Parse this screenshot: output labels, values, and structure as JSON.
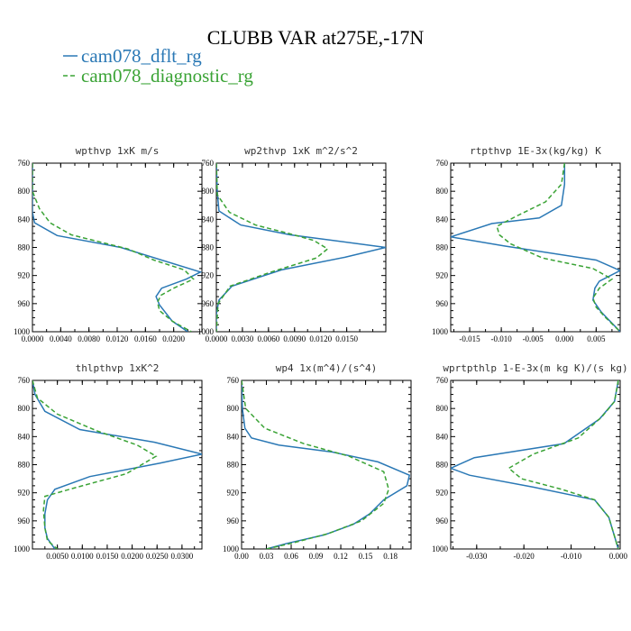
{
  "figure": {
    "title": "CLUBB VAR at275E,-17N",
    "legend": [
      {
        "name": "cam078_dflt_rg",
        "color": "#2a78b5",
        "dash": ""
      },
      {
        "name": "cam078_diagnostic_rg",
        "color": "#3aa335",
        "dash": "5,3"
      }
    ]
  },
  "chart_data": [
    {
      "type": "line",
      "title": "wpthvp  1xK m/s",
      "xlim": [
        0,
        0.024
      ],
      "ylim": [
        760,
        1000
      ],
      "y_inverted": true,
      "xticks": [
        0.0,
        0.004,
        0.008,
        0.012,
        0.016,
        0.02
      ],
      "xtick_labels": [
        "0.0000",
        "0.0040",
        "0.0080",
        "0.0120",
        "0.0160",
        "0.0200"
      ],
      "yticks": [
        760,
        800,
        840,
        880,
        920,
        960,
        1000
      ],
      "series": [
        {
          "name": "cam078_dflt_rg",
          "x": [
            0,
            0,
            0,
            0.0003,
            0.0035,
            0.0125,
            0.0238,
            0.0218,
            0.0183,
            0.0175,
            0.018,
            0.0198,
            0.022
          ],
          "y": [
            760,
            800,
            830,
            845,
            863,
            880,
            915,
            925,
            938,
            950,
            962,
            985,
            1000
          ]
        },
        {
          "name": "cam078_diagnostic_rg",
          "x": [
            0,
            0,
            0.001,
            0.0025,
            0.0055,
            0.0095,
            0.0135,
            0.0172,
            0.0215,
            0.0228,
            0.02,
            0.0182,
            0.0177,
            0.018,
            0.0198,
            0.0225
          ],
          "y": [
            760,
            800,
            825,
            845,
            862,
            872,
            882,
            898,
            912,
            925,
            938,
            948,
            958,
            970,
            985,
            1000
          ]
        }
      ]
    },
    {
      "type": "line",
      "title": "wp2thvp  1xK m^2/s^2",
      "xlim": [
        0,
        0.0195
      ],
      "ylim": [
        760,
        1000
      ],
      "y_inverted": true,
      "xticks": [
        0.0,
        0.003,
        0.006,
        0.009,
        0.012,
        0.015
      ],
      "xtick_labels": [
        "0.0000",
        "0.0030",
        "0.0060",
        "0.0090",
        "0.0120",
        "0.0150"
      ],
      "yticks": [
        760,
        800,
        840,
        880,
        920,
        960,
        1000
      ],
      "series": [
        {
          "name": "cam078_dflt_rg",
          "x": [
            0,
            0.0001,
            0.0003,
            0.0028,
            0.0085,
            0.0195,
            0.0148,
            0.0075,
            0.0018,
            0.0003,
            0,
            0
          ],
          "y": [
            760,
            800,
            828,
            848,
            862,
            880,
            894,
            912,
            935,
            955,
            975,
            1000
          ]
        },
        {
          "name": "cam078_diagnostic_rg",
          "x": [
            0,
            0.0001,
            0.0015,
            0.0045,
            0.0083,
            0.0112,
            0.0128,
            0.0115,
            0.0063,
            0.0016,
            0.0002,
            0
          ],
          "y": [
            760,
            805,
            830,
            848,
            860,
            870,
            882,
            895,
            915,
            935,
            960,
            1000
          ]
        }
      ]
    },
    {
      "type": "line",
      "title": "rtpthvp  1E-3x(kg/kg) K",
      "xlim": [
        -0.018,
        0.0088
      ],
      "ylim": [
        760,
        1000
      ],
      "y_inverted": true,
      "xticks": [
        -0.015,
        -0.01,
        -0.005,
        0.0,
        0.005
      ],
      "xtick_labels": [
        "-0.015",
        "-0.010",
        "-0.005",
        "0.000",
        "0.005"
      ],
      "yticks": [
        760,
        800,
        840,
        880,
        920,
        960,
        1000
      ],
      "series": [
        {
          "name": "cam078_dflt_rg",
          "x": [
            0,
            0,
            -0.0005,
            -0.004,
            -0.0115,
            -0.018,
            -0.0095,
            0.005,
            0.0088,
            0.0055,
            0.0048,
            0.0045,
            0.0058,
            0.0088
          ],
          "y": [
            760,
            790,
            820,
            838,
            846,
            865,
            878,
            898,
            913,
            928,
            938,
            955,
            972,
            1000
          ]
        },
        {
          "name": "cam078_diagnostic_rg",
          "x": [
            0,
            -0.0005,
            -0.003,
            -0.0075,
            -0.0107,
            -0.0103,
            -0.0085,
            -0.0035,
            0.0045,
            0.0075,
            0.0055,
            0.0045,
            0.005,
            0.0065,
            0.0088
          ],
          "y": [
            760,
            790,
            815,
            835,
            850,
            862,
            875,
            895,
            910,
            925,
            938,
            952,
            965,
            980,
            1000
          ]
        }
      ]
    },
    {
      "type": "line",
      "title": "thlpthvp  1xK^2",
      "xlim": [
        0,
        0.034
      ],
      "ylim": [
        760,
        1000
      ],
      "y_inverted": true,
      "xticks": [
        0.005,
        0.01,
        0.015,
        0.02,
        0.025,
        0.03
      ],
      "xtick_labels": [
        "0.0050",
        "0.0100",
        "0.0150",
        "0.0200",
        "0.0250",
        "0.0300"
      ],
      "yticks": [
        760,
        800,
        840,
        880,
        920,
        960,
        1000
      ],
      "series": [
        {
          "name": "cam078_dflt_rg",
          "x": [
            0,
            0.0005,
            0.0025,
            0.0095,
            0.0245,
            0.034,
            0.0255,
            0.0115,
            0.0045,
            0.003,
            0.0025,
            0.0025,
            0.003,
            0.0045
          ],
          "y": [
            760,
            780,
            804,
            830,
            848,
            865,
            878,
            897,
            915,
            930,
            950,
            970,
            985,
            1000
          ]
        },
        {
          "name": "cam078_diagnostic_rg",
          "x": [
            0,
            0.001,
            0.005,
            0.013,
            0.021,
            0.0248,
            0.0188,
            0.009,
            0.0025,
            0.0022,
            0.0025,
            0.003,
            0.005
          ],
          "y": [
            760,
            785,
            808,
            832,
            852,
            868,
            893,
            912,
            925,
            945,
            970,
            988,
            1000
          ]
        }
      ]
    },
    {
      "type": "line",
      "title": "wp4  1x(m^4)/(s^4)",
      "xlim": [
        0,
        0.205
      ],
      "ylim": [
        760,
        1000
      ],
      "y_inverted": true,
      "xticks": [
        0.0,
        0.03,
        0.06,
        0.09,
        0.12,
        0.15,
        0.18
      ],
      "xtick_labels": [
        "0.00",
        "0.03",
        "0.06",
        "0.09",
        "0.12",
        "0.15",
        "0.18"
      ],
      "yticks": [
        760,
        800,
        840,
        880,
        920,
        960,
        1000
      ],
      "series": [
        {
          "name": "cam078_dflt_rg",
          "x": [
            0,
            0.001,
            0.004,
            0.012,
            0.045,
            0.11,
            0.165,
            0.203,
            0.2,
            0.172,
            0.155,
            0.135,
            0.1,
            0.055,
            0.03
          ],
          "y": [
            760,
            800,
            828,
            842,
            852,
            862,
            876,
            895,
            910,
            930,
            950,
            965,
            980,
            992,
            1000
          ]
        },
        {
          "name": "cam078_diagnostic_rg",
          "x": [
            0,
            0.005,
            0.028,
            0.075,
            0.13,
            0.172,
            0.178,
            0.172,
            0.145,
            0.105,
            0.06,
            0.03
          ],
          "y": [
            760,
            800,
            828,
            850,
            868,
            890,
            915,
            935,
            960,
            978,
            992,
            1000
          ]
        }
      ]
    },
    {
      "type": "line",
      "title": "wprtpthlp  1-E-3x(m kg K)/(s kg)",
      "xlim": [
        -0.0355,
        0.0004
      ],
      "ylim": [
        760,
        1000
      ],
      "y_inverted": true,
      "xticks": [
        -0.03,
        -0.02,
        -0.01,
        0.0
      ],
      "xtick_labels": [
        "-0.030",
        "-0.020",
        "-0.010",
        "0.000"
      ],
      "yticks": [
        760,
        800,
        840,
        880,
        920,
        960,
        1000
      ],
      "series": [
        {
          "name": "cam078_dflt_rg",
          "x": [
            0,
            -0.0008,
            -0.004,
            -0.0115,
            -0.0305,
            -0.0355,
            -0.0315,
            -0.018,
            -0.005,
            -0.002,
            0
          ],
          "y": [
            760,
            790,
            815,
            850,
            870,
            885,
            895,
            912,
            930,
            955,
            1000
          ]
        },
        {
          "name": "cam078_diagnostic_rg",
          "x": [
            0,
            -0.0008,
            -0.0035,
            -0.0085,
            -0.018,
            -0.0232,
            -0.0205,
            -0.012,
            -0.005,
            -0.002,
            0
          ],
          "y": [
            760,
            790,
            812,
            842,
            865,
            885,
            900,
            915,
            930,
            955,
            1000
          ]
        }
      ]
    }
  ]
}
